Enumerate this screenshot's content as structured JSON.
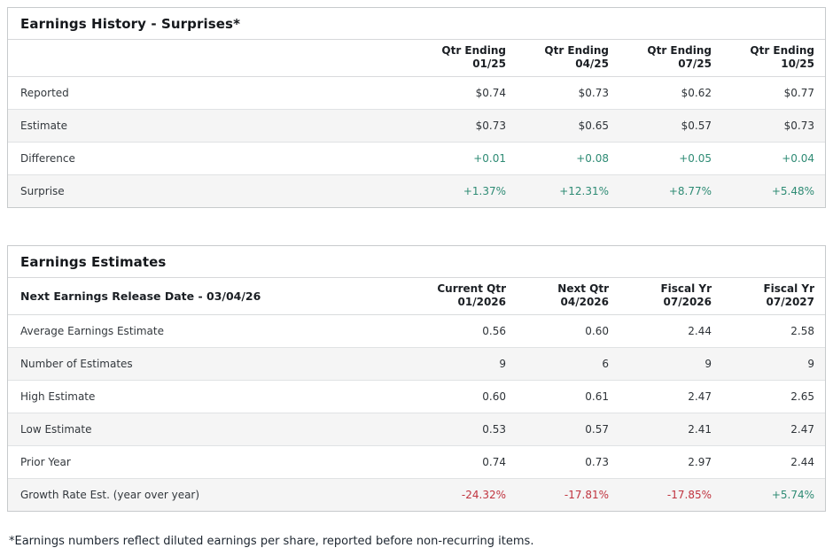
{
  "colors": {
    "positive_green": "#2e8b74",
    "negative_red": "#c0343f",
    "title_text": "#15181c",
    "body_text": "#33383d",
    "card_border": "#c7cacc",
    "row_alt_background": "#f5f5f5"
  },
  "history": {
    "title": "Earnings History - Surprises*",
    "corner_label": "",
    "columns": [
      {
        "line1": "Qtr Ending",
        "line2": "01/25"
      },
      {
        "line1": "Qtr Ending",
        "line2": "04/25"
      },
      {
        "line1": "Qtr Ending",
        "line2": "07/25"
      },
      {
        "line1": "Qtr Ending",
        "line2": "10/25"
      }
    ],
    "rows": [
      {
        "label": "Reported",
        "values": [
          "$0.74",
          "$0.73",
          "$0.62",
          "$0.77"
        ],
        "tone": "neutral"
      },
      {
        "label": "Estimate",
        "values": [
          "$0.73",
          "$0.65",
          "$0.57",
          "$0.73"
        ],
        "tone": "neutral"
      },
      {
        "label": "Difference",
        "values": [
          "+0.01",
          "+0.08",
          "+0.05",
          "+0.04"
        ],
        "tone": "positive"
      },
      {
        "label": "Surprise",
        "values": [
          "+1.37%",
          "+12.31%",
          "+8.77%",
          "+5.48%"
        ],
        "tone": "positive"
      }
    ]
  },
  "estimates": {
    "title": "Earnings Estimates",
    "corner_label": "Next Earnings Release Date - 03/04/26",
    "columns": [
      {
        "line1": "Current Qtr",
        "line2": "01/2026"
      },
      {
        "line1": "Next Qtr",
        "line2": "04/2026"
      },
      {
        "line1": "Fiscal Yr",
        "line2": "07/2026"
      },
      {
        "line1": "Fiscal Yr",
        "line2": "07/2027"
      }
    ],
    "rows": [
      {
        "label": "Average Earnings Estimate",
        "values": [
          "0.56",
          "0.60",
          "2.44",
          "2.58"
        ],
        "tone": "neutral"
      },
      {
        "label": "Number of Estimates",
        "values": [
          "9",
          "6",
          "9",
          "9"
        ],
        "tone": "neutral"
      },
      {
        "label": "High Estimate",
        "values": [
          "0.60",
          "0.61",
          "2.47",
          "2.65"
        ],
        "tone": "neutral"
      },
      {
        "label": "Low Estimate",
        "values": [
          "0.53",
          "0.57",
          "2.41",
          "2.47"
        ],
        "tone": "neutral"
      },
      {
        "label": "Prior Year",
        "values": [
          "0.74",
          "0.73",
          "2.97",
          "2.44"
        ],
        "tone": "neutral"
      },
      {
        "label": "Growth Rate Est. (year over year)",
        "values": [
          "-24.32%",
          "-17.81%",
          "-17.85%",
          "+5.74%"
        ],
        "tones": [
          "negative",
          "negative",
          "negative",
          "positive"
        ]
      }
    ]
  },
  "footnote": "*Earnings numbers reflect diluted earnings per share, reported before non-recurring items."
}
